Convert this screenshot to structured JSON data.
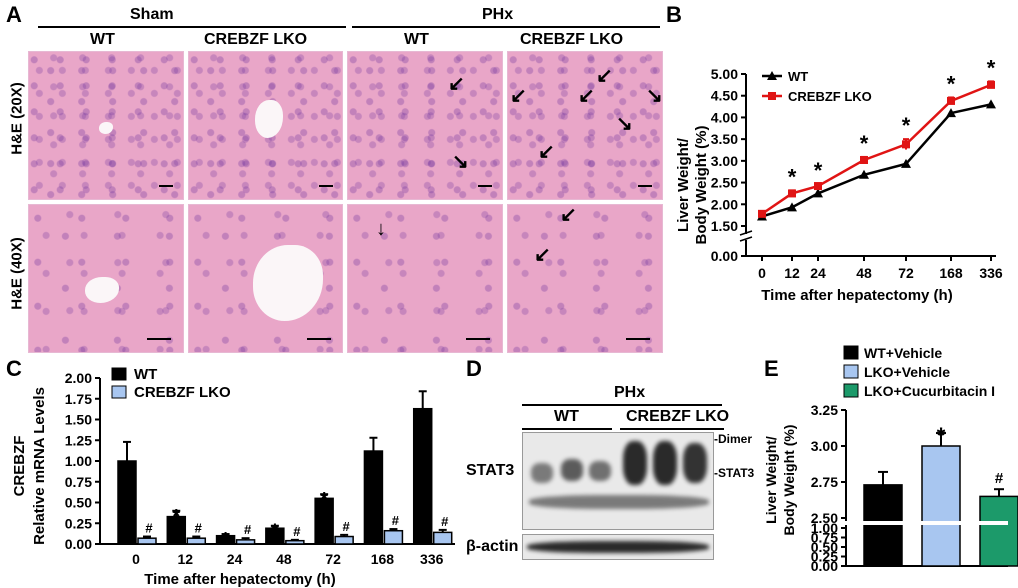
{
  "panelA": {
    "letter": "A",
    "group_sham": "Sham",
    "group_phx": "PHx",
    "col_wt": "WT",
    "col_lko": "CREBZF LKO",
    "row1": "H&E (20X)",
    "row2": "H&E (40X)"
  },
  "panelB": {
    "letter": "B",
    "ylabel_1": "Liver  Weight/",
    "ylabel_2": "Body Weight (%)",
    "xlabel": "Time after hepatectomy (h)",
    "star": "*"
  },
  "panelC": {
    "letter": "C",
    "ylabel_1": "CREBZF",
    "ylabel_2": "Relative mRNA Levels",
    "xlabel": "Time after hepatectomy (h)"
  },
  "panelD": {
    "letter": "D",
    "phx": "PHx",
    "wt": "WT",
    "lko": "CREBZF LKO",
    "stat3": "STAT3",
    "actin": "β-actin",
    "dimer": "-Dimer",
    "stat3_mark": "-STAT3"
  },
  "panelE": {
    "letter": "E",
    "ylabel_1": "Liver Weight/",
    "ylabel_2": "Body Weight (%)"
  },
  "chart_data": [
    {
      "type": "line",
      "panel": "B",
      "x": [
        0,
        12,
        24,
        48,
        72,
        168,
        336
      ],
      "xlabel": "Time after hepatectomy (h)",
      "ylabel": "Liver  Weight/ Body Weight (%)",
      "ylim": [
        0,
        5
      ],
      "yticks": [
        "0.00",
        "1.50",
        "2.00",
        "2.50",
        "3.00",
        "3.50",
        "4.00",
        "4.50",
        "5.00"
      ],
      "series": [
        {
          "name": "WT",
          "color": "#000000",
          "values": [
            1.72,
            1.93,
            2.25,
            2.68,
            2.93,
            4.1,
            4.3
          ]
        },
        {
          "name": "CREBZF LKO",
          "color": "#e01414",
          "values": [
            1.78,
            2.25,
            2.42,
            3.02,
            3.38,
            4.38,
            4.75
          ],
          "errors": [
            0.05,
            0.07,
            0.05,
            0.07,
            0.12,
            0.08,
            0.08
          ]
        }
      ],
      "annotations": [
        "*",
        "*",
        "*",
        "*",
        "*",
        "*"
      ]
    },
    {
      "type": "bar",
      "panel": "C",
      "categories": [
        "0",
        "12",
        "24",
        "48",
        "72",
        "168",
        "336"
      ],
      "xlabel": "Time after hepatectomy (h)",
      "ylabel": "CREBZF Relative mRNA Levels",
      "ylim": [
        0,
        2
      ],
      "yticks": [
        "0.00",
        "0.25",
        "0.50",
        "0.75",
        "1.00",
        "1.25",
        "1.50",
        "1.75",
        "2.00"
      ],
      "series": [
        {
          "name": "WT",
          "color": "#000000",
          "values": [
            1.0,
            0.33,
            0.1,
            0.19,
            0.55,
            1.12,
            1.63
          ],
          "errors": [
            0.23,
            0.07,
            0.02,
            0.03,
            0.05,
            0.16,
            0.21
          ]
        },
        {
          "name": "CREBZF LKO",
          "color": "#a8c6f0",
          "values": [
            0.07,
            0.07,
            0.05,
            0.04,
            0.09,
            0.16,
            0.14
          ],
          "errors": [
            0.02,
            0.02,
            0.02,
            0.01,
            0.02,
            0.02,
            0.03
          ]
        }
      ],
      "annotations": {
        "wt": [
          "",
          "*",
          "*",
          "*",
          "*",
          "",
          ""
        ],
        "lko": [
          "#",
          "#",
          "#",
          "#",
          "#",
          "#",
          "#"
        ]
      }
    },
    {
      "type": "bar",
      "panel": "E",
      "categories": [
        "WT+Vehicle",
        "LKO+Vehicle",
        "LKO+Cucurbitacin I"
      ],
      "ylabel": "Liver Weight/ Body Weight (%)",
      "yticks": [
        "0.00",
        "0.25",
        "0.50",
        "0.75",
        "1.00",
        "2.50",
        "2.75",
        "3.00",
        "3.25"
      ],
      "values": [
        2.73,
        3.0,
        2.65
      ],
      "errors": [
        0.09,
        0.09,
        0.05
      ],
      "colors": [
        "#000000",
        "#a8c6f0",
        "#1c9a6a"
      ],
      "annotations": [
        "",
        "*",
        "#"
      ]
    }
  ]
}
